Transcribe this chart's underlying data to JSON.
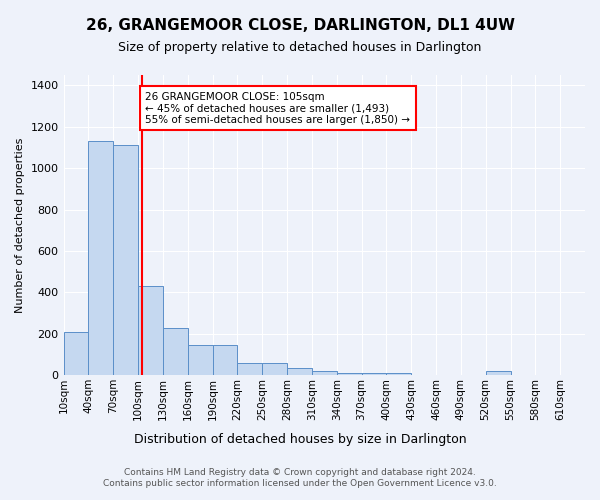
{
  "title": "26, GRANGEMOOR CLOSE, DARLINGTON, DL1 4UW",
  "subtitle": "Size of property relative to detached houses in Darlington",
  "xlabel": "Distribution of detached houses by size in Darlington",
  "ylabel": "Number of detached properties",
  "footer_line1": "Contains HM Land Registry data © Crown copyright and database right 2024.",
  "footer_line2": "Contains public sector information licensed under the Open Government Licence v3.0.",
  "annotation_line1": "26 GRANGEMOOR CLOSE: 105sqm",
  "annotation_line2": "← 45% of detached houses are smaller (1,493)",
  "annotation_line3": "55% of semi-detached houses are larger (1,850) →",
  "bar_color": "#c5d8f0",
  "bar_edge_color": "#5b8fc9",
  "red_line_x": 105,
  "bin_edges": [
    10,
    40,
    70,
    100,
    130,
    160,
    190,
    220,
    250,
    280,
    310,
    340,
    370,
    400,
    430,
    460,
    490,
    520,
    550,
    580,
    610,
    640
  ],
  "bin_labels": [
    "10sqm",
    "40sqm",
    "70sqm",
    "100sqm",
    "130sqm",
    "160sqm",
    "190sqm",
    "220sqm",
    "250sqm",
    "280sqm",
    "310sqm",
    "340sqm",
    "370sqm",
    "400sqm",
    "430sqm",
    "460sqm",
    "490sqm",
    "520sqm",
    "550sqm",
    "580sqm",
    "610sqm"
  ],
  "values": [
    210,
    1130,
    1110,
    430,
    230,
    145,
    145,
    60,
    60,
    35,
    20,
    12,
    12,
    12,
    0,
    0,
    0,
    20,
    0,
    0,
    0
  ],
  "ylim": [
    0,
    1450
  ],
  "yticks": [
    0,
    200,
    400,
    600,
    800,
    1000,
    1200,
    1400
  ],
  "bg_color": "#eef2fa",
  "grid_color": "#ffffff",
  "title_fontsize": 11,
  "subtitle_fontsize": 9,
  "ylabel_fontsize": 8,
  "xlabel_fontsize": 9,
  "tick_fontsize": 7.5,
  "annotation_fontsize": 7.5,
  "footer_fontsize": 6.5
}
